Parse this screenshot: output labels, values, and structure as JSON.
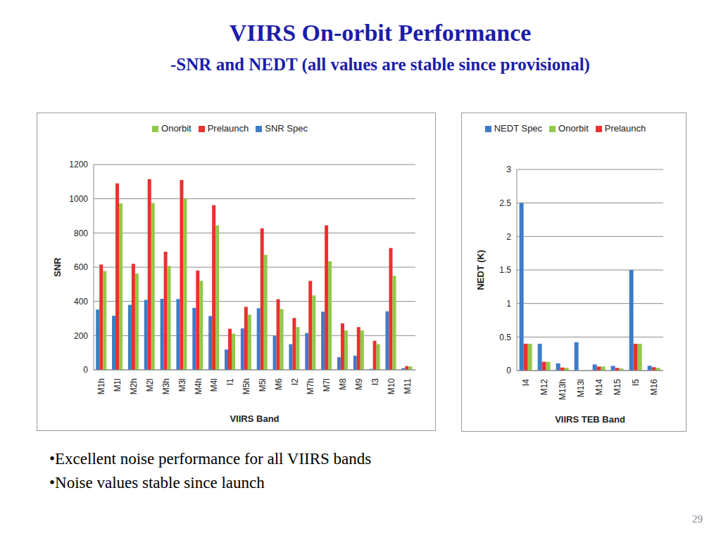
{
  "title": "VIIRS On-orbit Performance",
  "subtitle": "-SNR and NEDT (all values are stable since provisional)",
  "bullets": [
    "•Excellent noise performance for all VIIRS bands",
    "•Noise values stable since launch"
  ],
  "page_number": "29",
  "chart_data": [
    {
      "type": "bar",
      "ylabel": "SNR",
      "xlabel": "VIIRS Band",
      "categories": [
        "M1h",
        "M1l",
        "M2h",
        "M2l",
        "M3h",
        "M3l",
        "M4h",
        "M4l",
        "I1",
        "M5h",
        "M5l",
        "M6",
        "I2",
        "M7h",
        "M7l",
        "M8",
        "M9",
        "I3",
        "M10",
        "M11"
      ],
      "series": [
        {
          "name": "SNR Spec",
          "color": "#3d7cc9",
          "values": [
            352,
            316,
            380,
            409,
            415,
            414,
            362,
            315,
            119,
            242,
            360,
            199,
            150,
            215,
            340,
            74,
            83,
            6,
            342,
            10
          ]
        },
        {
          "name": "Prelaunch",
          "color": "#e8322f",
          "values": [
            615,
            1090,
            620,
            1115,
            690,
            1110,
            580,
            963,
            240,
            368,
            827,
            413,
            303,
            520,
            845,
            272,
            250,
            170,
            712,
            22
          ]
        },
        {
          "name": "Onorbit",
          "color": "#92c84a",
          "values": [
            577,
            973,
            563,
            975,
            607,
            1000,
            520,
            845,
            212,
            322,
            672,
            355,
            250,
            435,
            635,
            230,
            230,
            150,
            550,
            20
          ]
        }
      ],
      "ylim": [
        0,
        1200
      ],
      "yticks": [
        0,
        200,
        400,
        600,
        800,
        1000,
        1200
      ],
      "grid": true,
      "legend": "top"
    },
    {
      "type": "bar",
      "ylabel": "NEDT (K)",
      "xlabel": "VIIRS TEB Band",
      "categories": [
        "I4",
        "M12",
        "M13h",
        "M13l",
        "M14",
        "M15",
        "I5",
        "M16"
      ],
      "series": [
        {
          "name": "NEDT Spec",
          "color": "#3d7cc9",
          "values": [
            2.5,
            0.4,
            0.107,
            0.423,
            0.091,
            0.07,
            1.5,
            0.072
          ]
        },
        {
          "name": "Prelaunch",
          "color": "#e8322f",
          "values": [
            0.4,
            0.13,
            0.045,
            null,
            0.06,
            0.04,
            0.4,
            0.05
          ]
        },
        {
          "name": "Onorbit",
          "color": "#92c84a",
          "values": [
            0.4,
            0.13,
            0.04,
            null,
            0.06,
            0.03,
            0.4,
            0.04
          ]
        }
      ],
      "ylim": [
        0,
        3
      ],
      "yticks": [
        0,
        0.5,
        1,
        1.5,
        2,
        2.5,
        3
      ],
      "grid": true,
      "legend": "top"
    }
  ]
}
